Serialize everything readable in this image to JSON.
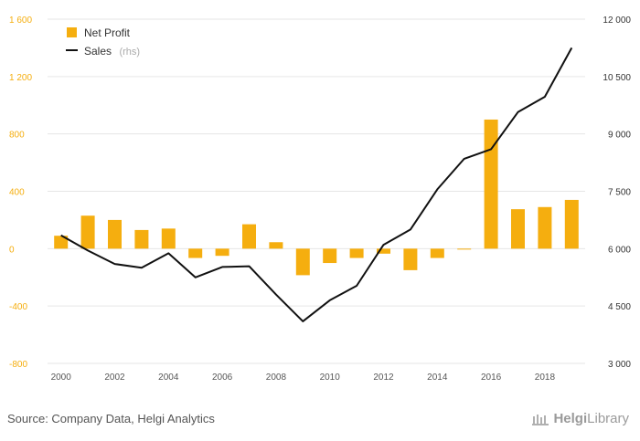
{
  "source": "Source: Company Data, Helgi Analytics",
  "logo": {
    "name": "HelgiLibrary",
    "part1": "Helgi",
    "part2": "Library"
  },
  "colors": {
    "bar": "#f5ae0f",
    "line": "#111111",
    "grid": "#e6e6e6",
    "left_axis_text": "#f5ae0f"
  },
  "chart_data": {
    "type": "bar+line",
    "title": "",
    "legend": {
      "placement": "top-left",
      "net_profit": "Net Profit",
      "sales": "Sales",
      "sales_suffix": "(rhs)"
    },
    "x": [
      2000,
      2001,
      2002,
      2003,
      2004,
      2005,
      2006,
      2007,
      2008,
      2009,
      2010,
      2011,
      2012,
      2013,
      2014,
      2015,
      2016,
      2017,
      2018,
      2019
    ],
    "x_tick_labels": [
      "2000",
      "2002",
      "2004",
      "2006",
      "2008",
      "2010",
      "2012",
      "2014",
      "2016",
      "2018"
    ],
    "y_left": {
      "ylim": [
        -800,
        1600
      ],
      "ticks": [
        1600,
        1200,
        800,
        400,
        0,
        -400,
        -800
      ],
      "tick_labels": [
        "1 600",
        "1 200",
        "800",
        "400",
        "0",
        "-400",
        "-800"
      ]
    },
    "y_right": {
      "ylim": [
        3000,
        12000
      ],
      "ticks": [
        12000,
        10500,
        9000,
        7500,
        6000,
        4500,
        3000
      ],
      "tick_labels": [
        "12 000",
        "10 500",
        "9 000",
        "7 500",
        "6 000",
        "4 500",
        "3 000"
      ]
    },
    "grid": true,
    "series": [
      {
        "name": "Net Profit",
        "type": "bar",
        "axis": "left",
        "values": [
          90,
          230,
          200,
          130,
          140,
          -65,
          -50,
          170,
          45,
          -185,
          -100,
          -65,
          -35,
          -150,
          -65,
          -5,
          900,
          275,
          290,
          340
        ]
      },
      {
        "name": "Sales",
        "type": "line",
        "axis": "right",
        "values": [
          6350,
          5950,
          5600,
          5500,
          5880,
          5250,
          5520,
          5540,
          4800,
          4100,
          4650,
          5030,
          6100,
          6500,
          7550,
          8350,
          8600,
          9570,
          9970,
          11250
        ]
      }
    ]
  }
}
